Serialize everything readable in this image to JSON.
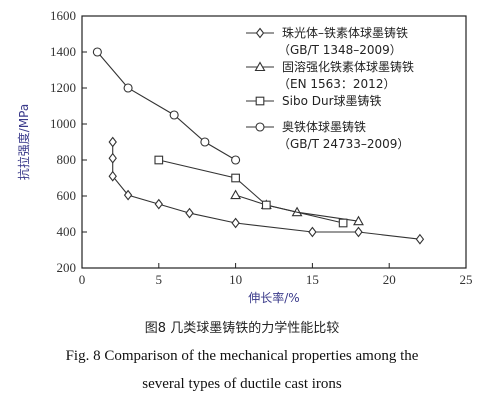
{
  "chart_data": {
    "type": "line",
    "xlabel": "伸长率/%",
    "ylabel": "抗拉强度/MPa",
    "xlim": [
      0,
      25
    ],
    "ylim": [
      200,
      1600
    ],
    "xticks": [
      "0",
      "5",
      "10",
      "15",
      "20",
      "25"
    ],
    "yticks": [
      "200",
      "400",
      "600",
      "800",
      "1000",
      "1200",
      "1400",
      "1600"
    ],
    "grid": false,
    "legend_position": "top-right",
    "series": [
      {
        "name": "珠光体–铁素体球墨铸铁",
        "name_sub": "（GB/T 1348–2009）",
        "marker": "diamond",
        "x": [
          2,
          2,
          2,
          3,
          5,
          7,
          10,
          15,
          18,
          22
        ],
        "y": [
          900,
          810,
          710,
          605,
          555,
          505,
          450,
          400,
          400,
          360
        ]
      },
      {
        "name": "固溶强化铁素体球墨铸铁",
        "name_sub": "（EN 1563：2012）",
        "marker": "triangle",
        "x": [
          10,
          12,
          14,
          18
        ],
        "y": [
          605,
          550,
          510,
          460
        ]
      },
      {
        "name": "Sibo Dur球墨铸铁",
        "name_sub": "",
        "marker": "square",
        "x": [
          5,
          10,
          12,
          17
        ],
        "y": [
          800,
          700,
          550,
          450
        ]
      },
      {
        "name": "奥铁体球墨铸铁",
        "name_sub": "（GB/T 24733–2009）",
        "marker": "circle",
        "x": [
          1,
          3,
          6,
          8,
          10
        ],
        "y": [
          1400,
          1200,
          1050,
          900,
          800
        ]
      }
    ]
  },
  "caption": {
    "zh": "图8 几类球墨铸铁的力学性能比较",
    "en_line1": "Fig. 8 Comparison of the mechanical properties among the",
    "en_line2": "several types of ductile cast irons"
  },
  "colors": {
    "line": "#333333",
    "axis": "#222222",
    "axis_title": "#3a3a8a"
  }
}
